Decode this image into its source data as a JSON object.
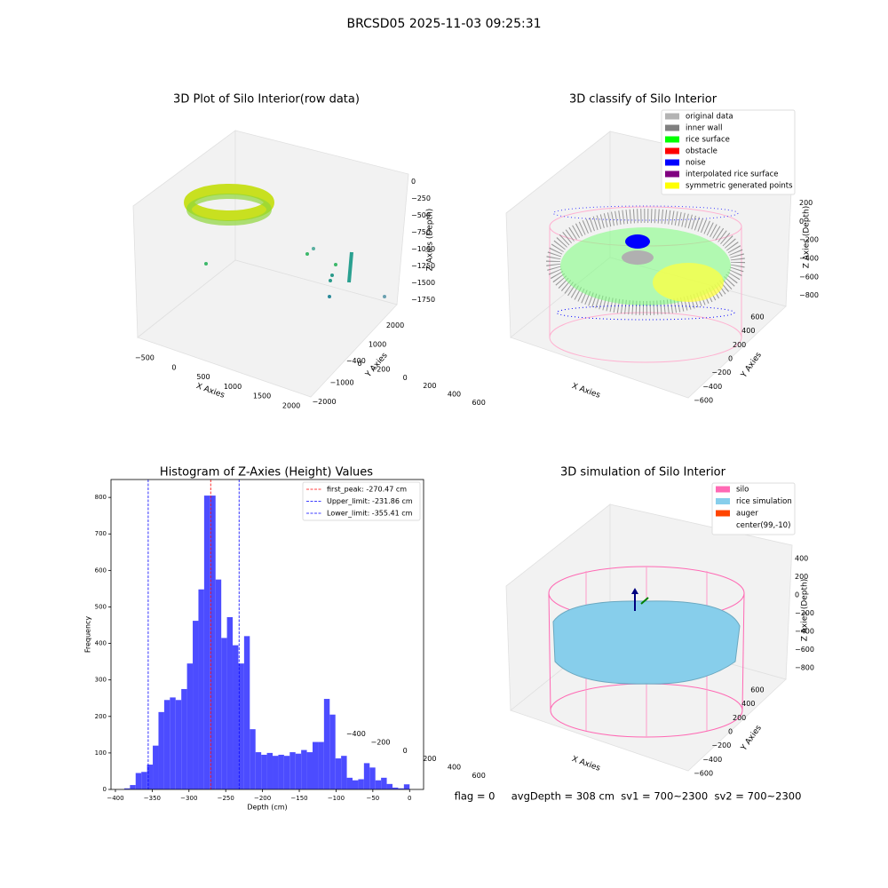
{
  "title": "BRCSD05 2025-11-03 09:25:31",
  "footer": "flag = 0     avgDepth = 308 cm  sv1 = 700~2300  sv2 = 700~2300",
  "chart_data": [
    {
      "type": "scatter3d",
      "title": "3D Plot of Silo Interior(row data)",
      "xlabel": "X Axies",
      "ylabel": "Y Axies",
      "zlabel": "Z Axies (Depth)",
      "xlim": [
        -650,
        2150
      ],
      "ylim": [
        -2200,
        2300
      ],
      "zlim": [
        -1850,
        100
      ],
      "xticks": [
        {
          "value": -500,
          "label": "−500"
        },
        0,
        500,
        1000,
        1500,
        2000
      ],
      "yticks": [
        {
          "value": -2000,
          "label": "−2000"
        },
        {
          "value": -1000,
          "label": "−1000"
        },
        0,
        1000,
        2000
      ],
      "zticks": [
        0,
        {
          "value": -250,
          "label": "−250"
        },
        {
          "value": -500,
          "label": "−500"
        },
        {
          "value": -750,
          "label": "−750"
        },
        {
          "value": -1000,
          "label": "−1000"
        },
        {
          "value": -1250,
          "label": "−1250"
        },
        {
          "value": -1500,
          "label": "−1500"
        },
        {
          "value": -1750,
          "label": "−1750"
        }
      ]
    },
    {
      "type": "scatter3d",
      "title": "3D classify of Silo Interior",
      "xlabel": "X Axies",
      "ylabel": "Y Axies",
      "zlabel": "Z Axies (Depth)",
      "xlim": [
        -500,
        700
      ],
      "ylim": [
        -700,
        700
      ],
      "zlim": [
        -900,
        300
      ],
      "xticks": [
        {
          "value": -400,
          "label": "−400"
        },
        {
          "value": -200,
          "label": "−200"
        },
        0,
        200,
        400,
        600
      ],
      "yticks": [
        {
          "value": -600,
          "label": "−600"
        },
        {
          "value": -400,
          "label": "−400"
        },
        {
          "value": -200,
          "label": "−200"
        },
        0,
        200,
        400,
        600
      ],
      "zticks": [
        200,
        0,
        {
          "value": -200,
          "label": "−200"
        },
        {
          "value": -400,
          "label": "−400"
        },
        {
          "value": -600,
          "label": "−600"
        },
        {
          "value": -800,
          "label": "−800"
        }
      ],
      "legend": [
        {
          "name": "original data",
          "color": "#b3b3b3"
        },
        {
          "name": "inner wall",
          "color": "#808080"
        },
        {
          "name": "rice surface",
          "color": "#00ff00"
        },
        {
          "name": "obstacle",
          "color": "#ff0000"
        },
        {
          "name": "noise",
          "color": "#0000ff"
        },
        {
          "name": "interpolated rice surface",
          "color": "#800080"
        },
        {
          "name": "symmetric generated points",
          "color": "#ffff00"
        }
      ]
    },
    {
      "type": "histogram",
      "title": "Histogram of Z-Axies (Height) Values",
      "xlabel": "Depth (cm)",
      "ylabel": "Frequency",
      "color": "#4c4cff",
      "bins": [
        -388.0,
        -380.24,
        -372.48,
        -364.72,
        -356.96,
        -349.2,
        -341.44,
        -333.68,
        -325.92,
        -318.16,
        -310.4,
        -302.64,
        -294.88,
        -287.12,
        -279.36,
        -271.6,
        -263.84,
        -256.08,
        -248.32,
        -240.56,
        -232.8,
        -225.04,
        -217.28,
        -209.52,
        -201.76,
        -194.0,
        -186.24,
        -178.48,
        -170.72,
        -162.96,
        -155.2,
        -147.44,
        -139.68,
        -131.92,
        -124.16,
        -116.4,
        -108.64,
        -100.88,
        -93.12,
        -85.36,
        -77.6,
        -69.84,
        -62.08,
        -54.32,
        -46.56,
        -38.8,
        -31.04,
        -23.28,
        -15.52,
        -7.76,
        0.0
      ],
      "counts": [
        3,
        12,
        45,
        48,
        68,
        120,
        212,
        245,
        252,
        245,
        275,
        345,
        462,
        548,
        805,
        805,
        575,
        415,
        472,
        395,
        345,
        420,
        165,
        102,
        95,
        100,
        92,
        95,
        92,
        102,
        98,
        108,
        102,
        130,
        130,
        248,
        205,
        85,
        92,
        32,
        25,
        28,
        72,
        60,
        25,
        32,
        15,
        5,
        3,
        14
      ],
      "xlim": [
        -406,
        19
      ],
      "ylim": [
        0,
        849
      ],
      "xticks": [
        {
          "value": -400,
          "label": "−400"
        },
        {
          "value": -350,
          "label": "−350"
        },
        {
          "value": -300,
          "label": "−300"
        },
        {
          "value": -250,
          "label": "−250"
        },
        {
          "value": -200,
          "label": "−200"
        },
        {
          "value": -150,
          "label": "−150"
        },
        {
          "value": -100,
          "label": "−100"
        },
        {
          "value": -50,
          "label": "−50"
        },
        0
      ],
      "yticks": [
        0,
        100,
        200,
        300,
        400,
        500,
        600,
        700,
        800
      ],
      "lines": [
        {
          "label": "first_peak: -270.47 cm",
          "value": -270.47,
          "color": "#ff0000"
        },
        {
          "label": "Upper_limit: -231.86 cm",
          "value": -231.86,
          "color": "#0000ff"
        },
        {
          "label": "Lower_limit: -355.41 cm",
          "value": -355.41,
          "color": "#0000ff"
        }
      ]
    },
    {
      "type": "scatter3d",
      "title": "3D simulation of Silo Interior",
      "xlabel": "X Axies",
      "ylabel": "Y Axies",
      "zlabel": "Z Axies (Depth)",
      "xlim": [
        -500,
        700
      ],
      "ylim": [
        -700,
        700
      ],
      "zlim": [
        -900,
        500
      ],
      "xticks": [
        {
          "value": -400,
          "label": "−400"
        },
        {
          "value": -200,
          "label": "−200"
        },
        0,
        200,
        400,
        600
      ],
      "yticks": [
        {
          "value": -600,
          "label": "−600"
        },
        {
          "value": -400,
          "label": "−400"
        },
        {
          "value": -200,
          "label": "−200"
        },
        0,
        200,
        400,
        600
      ],
      "zticks": [
        400,
        200,
        0,
        {
          "value": -200,
          "label": "−200"
        },
        {
          "value": -400,
          "label": "−400"
        },
        {
          "value": -600,
          "label": "−600"
        },
        {
          "value": -800,
          "label": "−800"
        }
      ],
      "legend": [
        {
          "name": "silo",
          "color": "#ff69b4"
        },
        {
          "name": "rice simulation",
          "color": "#87ceeb"
        },
        {
          "name": "auger",
          "color": "#ff4500"
        },
        {
          "name": "center(99,-10)",
          "color": "#ffffff"
        }
      ]
    }
  ]
}
